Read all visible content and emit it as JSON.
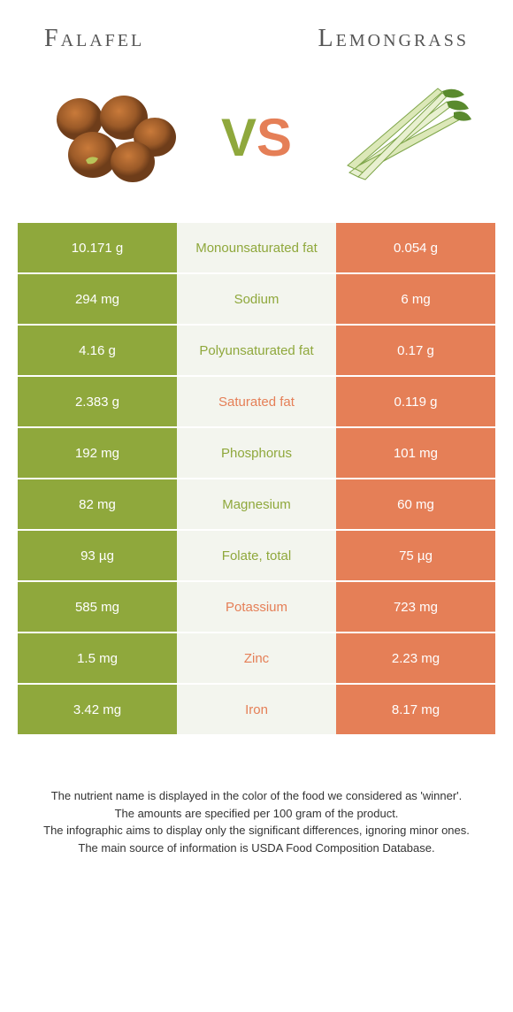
{
  "colors": {
    "left_bg": "#8fa83c",
    "right_bg": "#e57f57",
    "mid_bg": "#f3f5ee",
    "left_text_color": "#8fa83c",
    "right_text_color": "#e57f57"
  },
  "header": {
    "left": "Falafel",
    "right": "Lemongrass"
  },
  "vs": {
    "v": "V",
    "s": "S"
  },
  "rows": [
    {
      "left": "10.171 g",
      "label": "Monounsaturated fat",
      "right": "0.054 g",
      "winner": "left"
    },
    {
      "left": "294 mg",
      "label": "Sodium",
      "right": "6 mg",
      "winner": "left"
    },
    {
      "left": "4.16 g",
      "label": "Polyunsaturated fat",
      "right": "0.17 g",
      "winner": "left"
    },
    {
      "left": "2.383 g",
      "label": "Saturated fat",
      "right": "0.119 g",
      "winner": "right"
    },
    {
      "left": "192 mg",
      "label": "Phosphorus",
      "right": "101 mg",
      "winner": "left"
    },
    {
      "left": "82 mg",
      "label": "Magnesium",
      "right": "60 mg",
      "winner": "left"
    },
    {
      "left": "93 µg",
      "label": "Folate, total",
      "right": "75 µg",
      "winner": "left"
    },
    {
      "left": "585 mg",
      "label": "Potassium",
      "right": "723 mg",
      "winner": "right"
    },
    {
      "left": "1.5 mg",
      "label": "Zinc",
      "right": "2.23 mg",
      "winner": "right"
    },
    {
      "left": "3.42 mg",
      "label": "Iron",
      "right": "8.17 mg",
      "winner": "right"
    }
  ],
  "footer": {
    "line1": "The nutrient name is displayed in the color of the food we considered as 'winner'.",
    "line2": "The amounts are specified per 100 gram of the product.",
    "line3": "The infographic aims to display only the significant differences, ignoring minor ones.",
    "line4": "The main source of information is USDA Food Composition Database."
  }
}
